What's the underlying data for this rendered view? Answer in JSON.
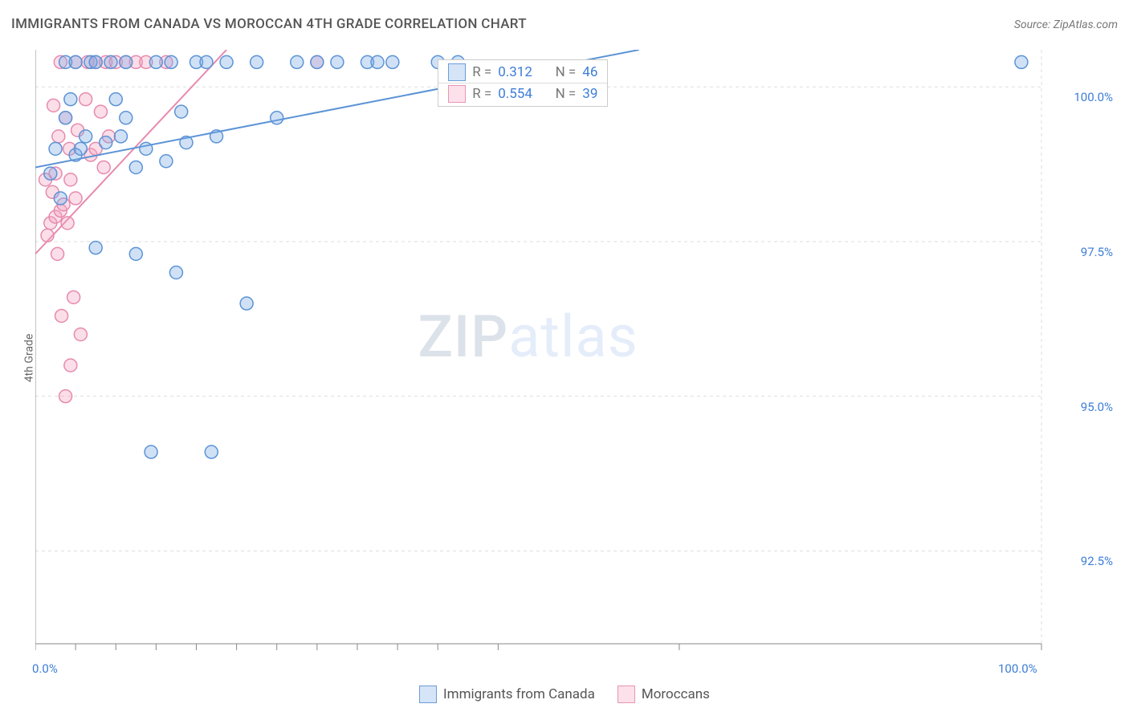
{
  "title": "IMMIGRANTS FROM CANADA VS MOROCCAN 4TH GRADE CORRELATION CHART",
  "source": "Source: ZipAtlas.com",
  "ylabel": "4th Grade",
  "watermark": {
    "zip": "ZIP",
    "atlas": "atlas"
  },
  "chart": {
    "type": "scatter",
    "xlim": [
      0,
      100
    ],
    "ylim": [
      91.0,
      100.6
    ],
    "x_axis": {
      "min_label": "0.0%",
      "max_label": "100.0%",
      "tick_positions": [
        0,
        4,
        8,
        12,
        16,
        20,
        24,
        28,
        32,
        36,
        40,
        46,
        64,
        100
      ]
    },
    "y_axis": {
      "ticks": [
        {
          "v": 92.5,
          "label": "92.5%"
        },
        {
          "v": 95.0,
          "label": "95.0%"
        },
        {
          "v": 97.5,
          "label": "97.5%"
        },
        {
          "v": 100.0,
          "label": "100.0%"
        }
      ]
    },
    "grid_color": "#dddddd",
    "axis_color": "#888888",
    "background_color": "#ffffff",
    "marker_radius": 8,
    "marker_stroke_width": 1.5,
    "trend_line_width": 2,
    "series": [
      {
        "name": "Immigrants from Canada",
        "key": "blue",
        "fill": "rgba(120,168,228,0.35)",
        "stroke": "#5b93d6",
        "r": 0.312,
        "n": 46,
        "trend": {
          "x1": 0,
          "y1": 98.7,
          "x2": 60,
          "y2": 100.6
        },
        "points": [
          [
            1.5,
            98.6
          ],
          [
            2,
            99.0
          ],
          [
            2.5,
            98.2
          ],
          [
            3,
            99.5
          ],
          [
            3,
            100.4
          ],
          [
            3.5,
            99.8
          ],
          [
            4,
            98.9
          ],
          [
            4,
            100.4
          ],
          [
            4.5,
            99.0
          ],
          [
            5,
            99.2
          ],
          [
            5.5,
            100.4
          ],
          [
            6,
            100.4
          ],
          [
            6,
            97.4
          ],
          [
            7,
            99.1
          ],
          [
            7.5,
            100.4
          ],
          [
            8,
            99.8
          ],
          [
            8.5,
            99.2
          ],
          [
            9,
            100.4
          ],
          [
            9,
            99.5
          ],
          [
            10,
            98.7
          ],
          [
            10,
            97.3
          ],
          [
            11,
            99.0
          ],
          [
            11.5,
            94.1
          ],
          [
            12,
            100.4
          ],
          [
            13,
            98.8
          ],
          [
            13.5,
            100.4
          ],
          [
            14,
            97.0
          ],
          [
            14.5,
            99.6
          ],
          [
            15,
            99.1
          ],
          [
            16,
            100.4
          ],
          [
            17,
            100.4
          ],
          [
            17.5,
            94.1
          ],
          [
            18,
            99.2
          ],
          [
            19,
            100.4
          ],
          [
            21,
            96.5
          ],
          [
            22,
            100.4
          ],
          [
            24,
            99.5
          ],
          [
            26,
            100.4
          ],
          [
            28,
            100.4
          ],
          [
            30,
            100.4
          ],
          [
            33,
            100.4
          ],
          [
            34,
            100.4
          ],
          [
            35.5,
            100.4
          ],
          [
            40,
            100.4
          ],
          [
            42,
            100.4
          ],
          [
            98,
            100.4
          ]
        ]
      },
      {
        "name": "Moroccans",
        "key": "pink",
        "fill": "rgba(244,160,188,0.35)",
        "stroke": "#e78aae",
        "r": 0.554,
        "n": 39,
        "trend": {
          "x1": 0,
          "y1": 97.3,
          "x2": 19,
          "y2": 100.6
        },
        "points": [
          [
            1,
            98.5
          ],
          [
            1.2,
            97.6
          ],
          [
            1.5,
            97.8
          ],
          [
            1.7,
            98.3
          ],
          [
            1.8,
            99.7
          ],
          [
            2,
            97.9
          ],
          [
            2,
            98.6
          ],
          [
            2.2,
            97.3
          ],
          [
            2.3,
            99.2
          ],
          [
            2.5,
            98.0
          ],
          [
            2.5,
            100.4
          ],
          [
            2.6,
            96.3
          ],
          [
            2.8,
            98.1
          ],
          [
            3,
            99.5
          ],
          [
            3,
            95.0
          ],
          [
            3.2,
            97.8
          ],
          [
            3.4,
            99.0
          ],
          [
            3.5,
            98.5
          ],
          [
            3.5,
            95.5
          ],
          [
            3.8,
            96.6
          ],
          [
            4,
            100.4
          ],
          [
            4,
            98.2
          ],
          [
            4.2,
            99.3
          ],
          [
            4.5,
            96.0
          ],
          [
            5,
            99.8
          ],
          [
            5.2,
            100.4
          ],
          [
            5.5,
            98.9
          ],
          [
            6,
            100.4
          ],
          [
            6,
            99.0
          ],
          [
            6.5,
            99.6
          ],
          [
            6.8,
            98.7
          ],
          [
            7,
            100.4
          ],
          [
            7.3,
            99.2
          ],
          [
            8,
            100.4
          ],
          [
            9,
            100.4
          ],
          [
            10,
            100.4
          ],
          [
            11,
            100.4
          ],
          [
            13,
            100.4
          ],
          [
            28,
            100.4
          ]
        ]
      }
    ],
    "legend_top": {
      "rows": [
        {
          "swatch": "blue",
          "r_label": "R =",
          "r_val": "0.312",
          "n_label": "N =",
          "n_val": "46"
        },
        {
          "swatch": "pink",
          "r_label": "R =",
          "r_val": "0.554",
          "n_label": "N =",
          "n_val": "39"
        }
      ]
    },
    "legend_bottom": [
      {
        "swatch": "blue",
        "label": "Immigrants from Canada"
      },
      {
        "swatch": "pink",
        "label": "Moroccans"
      }
    ]
  }
}
